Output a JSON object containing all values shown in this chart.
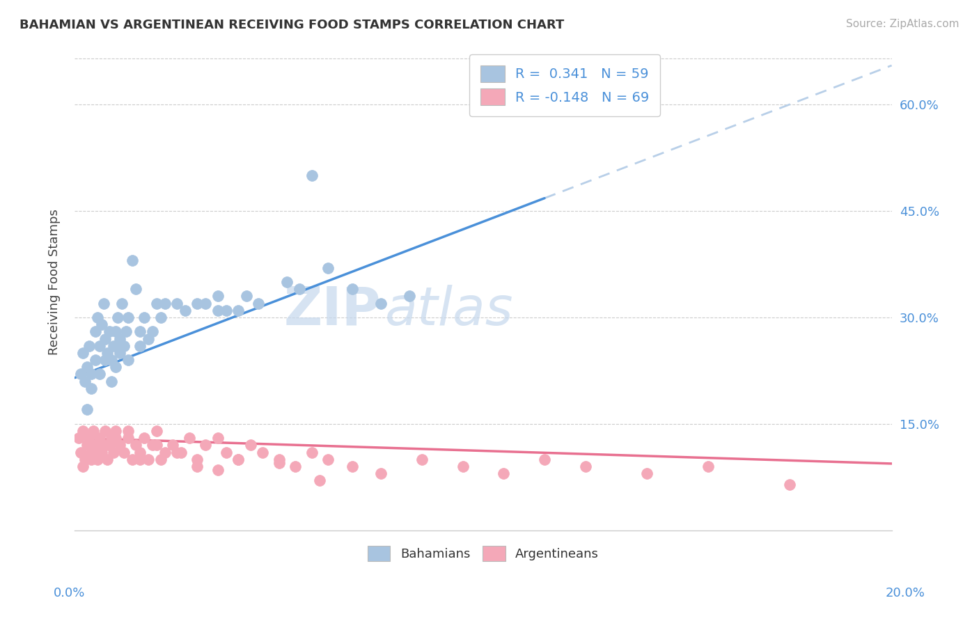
{
  "title": "BAHAMIAN VS ARGENTINEAN RECEIVING FOOD STAMPS CORRELATION CHART",
  "source": "Source: ZipAtlas.com",
  "ylabel": "Receiving Food Stamps",
  "yticks": [
    "15.0%",
    "30.0%",
    "45.0%",
    "60.0%"
  ],
  "ytick_vals": [
    15.0,
    30.0,
    45.0,
    60.0
  ],
  "xlim": [
    0.0,
    20.0
  ],
  "ylim": [
    0.0,
    68.0
  ],
  "watermark_zip": "ZIP",
  "watermark_atlas": "atlas",
  "legend_blue_label": "R =  0.341   N = 59",
  "legend_pink_label": "R = -0.148   N = 69",
  "bahamian_color": "#a8c4e0",
  "argentinean_color": "#f4a8b8",
  "trend_blue": "#4a90d9",
  "trend_pink": "#e87090",
  "trend_dashed_color": "#b8cfe8",
  "blue_line_x0": 0.0,
  "blue_line_y0": 21.5,
  "blue_line_slope": 2.2,
  "pink_line_x0": 0.0,
  "pink_line_y0": 13.0,
  "pink_line_slope": -0.18,
  "blue_solid_end_x": 11.5,
  "bahamians_x": [
    0.15,
    0.2,
    0.25,
    0.3,
    0.35,
    0.4,
    0.5,
    0.5,
    0.55,
    0.6,
    0.65,
    0.7,
    0.75,
    0.8,
    0.85,
    0.9,
    0.95,
    1.0,
    1.05,
    1.1,
    1.15,
    1.2,
    1.25,
    1.3,
    1.4,
    1.5,
    1.6,
    1.7,
    1.8,
    2.0,
    2.1,
    2.2,
    2.5,
    2.7,
    3.0,
    3.2,
    3.5,
    3.5,
    3.7,
    4.0,
    4.2,
    4.5,
    5.2,
    5.5,
    5.8,
    6.2,
    6.8,
    7.5,
    8.2,
    0.3,
    0.4,
    0.6,
    0.75,
    0.9,
    1.0,
    1.1,
    1.3,
    1.6,
    1.9
  ],
  "bahamians_y": [
    22.0,
    25.0,
    21.0,
    23.0,
    26.0,
    22.0,
    28.0,
    24.0,
    30.0,
    26.0,
    29.0,
    32.0,
    27.0,
    25.0,
    28.0,
    24.0,
    26.0,
    28.0,
    30.0,
    27.0,
    32.0,
    26.0,
    28.0,
    30.0,
    38.0,
    34.0,
    28.0,
    30.0,
    27.0,
    32.0,
    30.0,
    32.0,
    32.0,
    31.0,
    32.0,
    32.0,
    33.0,
    31.0,
    31.0,
    31.0,
    33.0,
    32.0,
    35.0,
    34.0,
    50.0,
    37.0,
    34.0,
    32.0,
    33.0,
    17.0,
    20.0,
    22.0,
    24.0,
    21.0,
    23.0,
    25.0,
    24.0,
    26.0,
    28.0
  ],
  "argentineans_x": [
    0.1,
    0.15,
    0.2,
    0.25,
    0.3,
    0.35,
    0.4,
    0.45,
    0.5,
    0.55,
    0.6,
    0.65,
    0.7,
    0.75,
    0.8,
    0.85,
    0.9,
    0.95,
    1.0,
    1.1,
    1.2,
    1.3,
    1.4,
    1.5,
    1.6,
    1.7,
    1.8,
    1.9,
    2.0,
    2.1,
    2.2,
    2.4,
    2.6,
    2.8,
    3.0,
    3.2,
    3.5,
    3.7,
    4.0,
    4.3,
    4.6,
    5.0,
    5.4,
    5.8,
    6.2,
    6.8,
    7.5,
    8.5,
    9.5,
    10.5,
    11.5,
    12.5,
    14.0,
    15.5,
    17.5,
    0.2,
    0.4,
    0.6,
    0.8,
    1.0,
    1.3,
    1.6,
    2.0,
    2.5,
    3.0,
    3.5,
    4.0,
    5.0,
    6.0
  ],
  "argentineans_y": [
    13.0,
    11.0,
    14.0,
    10.0,
    12.0,
    13.0,
    11.0,
    14.0,
    12.0,
    10.0,
    13.0,
    11.0,
    12.0,
    14.0,
    10.0,
    12.0,
    13.0,
    11.0,
    14.0,
    12.0,
    11.0,
    13.0,
    10.0,
    12.0,
    11.0,
    13.0,
    10.0,
    12.0,
    14.0,
    10.0,
    11.0,
    12.0,
    11.0,
    13.0,
    10.0,
    12.0,
    13.0,
    11.0,
    10.0,
    12.0,
    11.0,
    10.0,
    9.0,
    11.0,
    10.0,
    9.0,
    8.0,
    10.0,
    9.0,
    8.0,
    10.0,
    9.0,
    8.0,
    9.0,
    6.5,
    9.0,
    10.0,
    11.0,
    12.0,
    13.0,
    14.0,
    10.0,
    12.0,
    11.0,
    9.0,
    8.5,
    10.0,
    9.5,
    7.0
  ]
}
